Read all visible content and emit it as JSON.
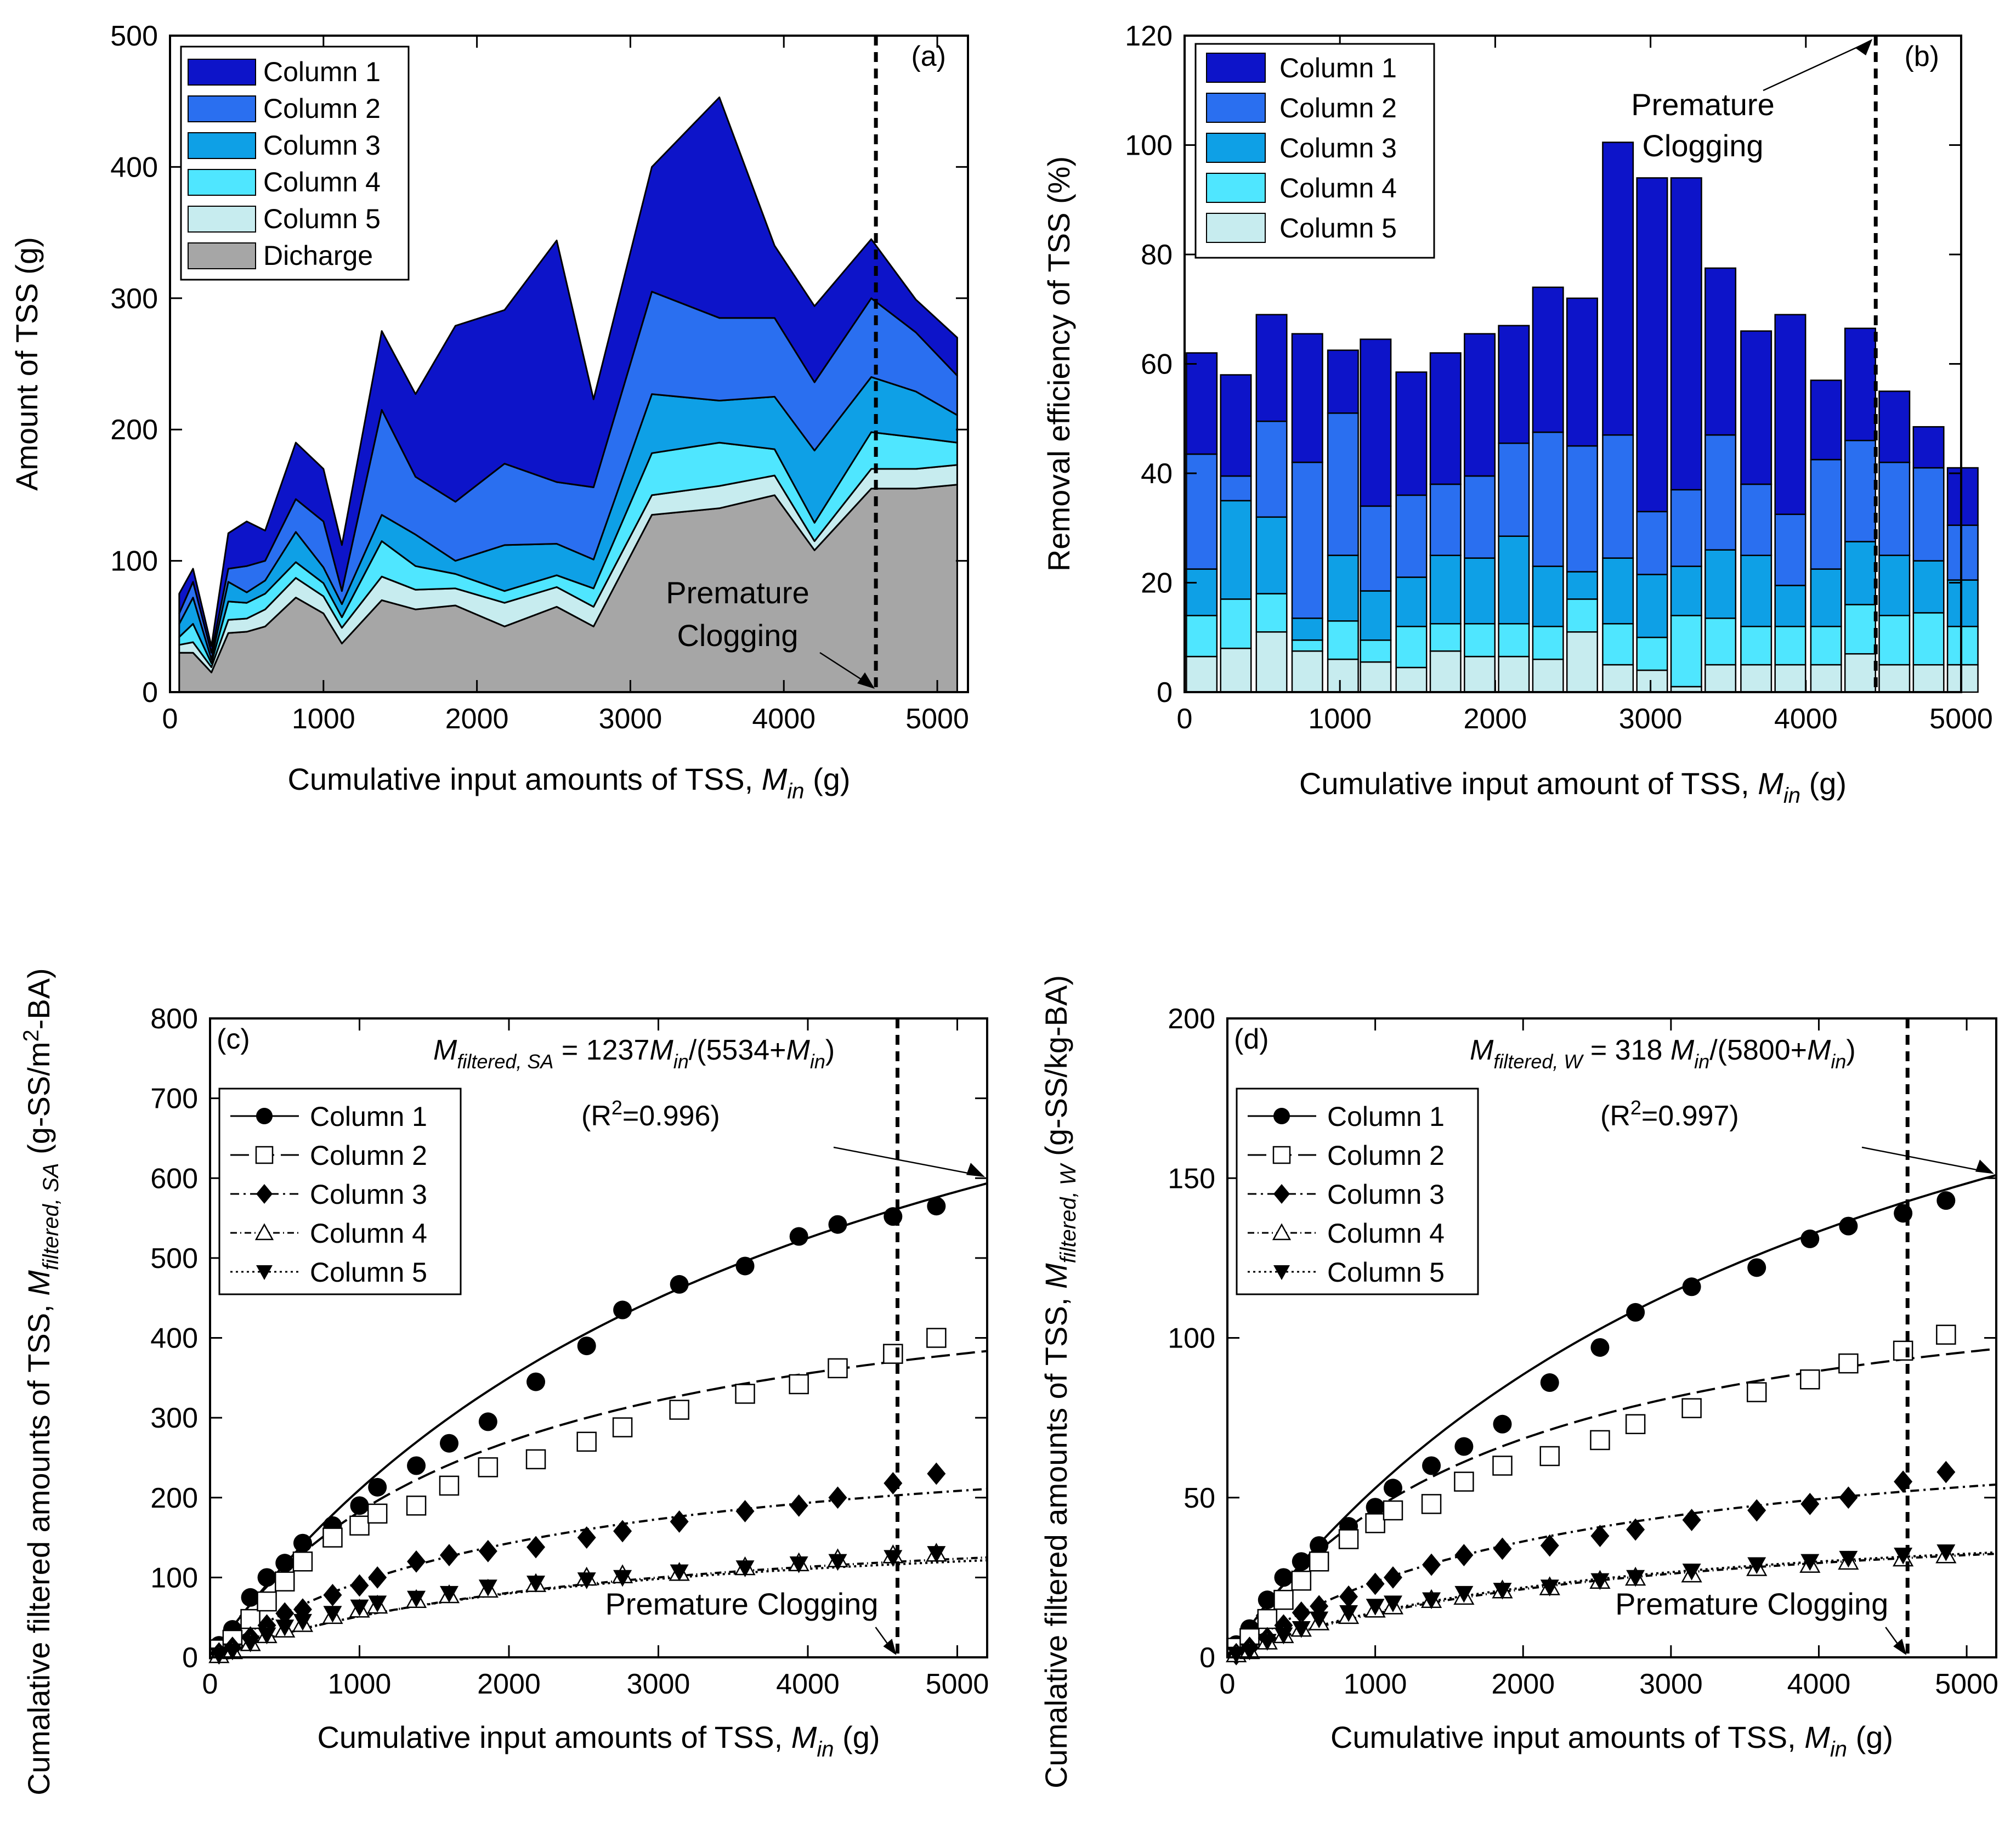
{
  "chart_data": [
    {
      "id": "a",
      "type": "area",
      "panel_label": "(a)",
      "xlabel": "Cumulative input amounts of TSS,",
      "x_symbol": "M",
      "x_symbol_sub": "in",
      "x_unit": "(g)",
      "ylabel": "Amount of TSS (g)",
      "xlim": [
        0,
        5200
      ],
      "ylim": [
        0,
        500
      ],
      "xticks": [
        0,
        1000,
        2000,
        3000,
        4000,
        5000
      ],
      "yticks": [
        0,
        100,
        200,
        300,
        400,
        500
      ],
      "x": [
        60,
        150,
        270,
        380,
        500,
        620,
        820,
        1000,
        1120,
        1380,
        1600,
        1860,
        2180,
        2520,
        2760,
        3140,
        3580,
        3940,
        4200,
        4570,
        4860,
        5130
      ],
      "layers": [
        {
          "name": "Dicharge",
          "color": "#a6a6a6",
          "values": [
            30,
            30,
            15,
            45,
            46,
            50,
            72,
            60,
            37,
            70,
            63,
            66,
            50,
            65,
            50,
            135,
            140,
            150,
            108,
            155,
            155,
            158
          ]
        },
        {
          "name": "Column 5",
          "color": "#c7ecef",
          "values": [
            6,
            8,
            4,
            10,
            10,
            13,
            15,
            13,
            12,
            18,
            15,
            13,
            18,
            15,
            15,
            15,
            17,
            15,
            7,
            15,
            15,
            15
          ]
        },
        {
          "name": "Column 4",
          "color": "#4fe6ff",
          "values": [
            6,
            14,
            3,
            14,
            12,
            12,
            12,
            10,
            8,
            27,
            18,
            11,
            9,
            9,
            14,
            32,
            33,
            20,
            14,
            28,
            24,
            17
          ]
        },
        {
          "name": "Column 3",
          "color": "#0ea0e6",
          "values": [
            10,
            20,
            3,
            15,
            8,
            10,
            23,
            12,
            10,
            20,
            24,
            10,
            35,
            24,
            22,
            45,
            32,
            40,
            55,
            42,
            35,
            21
          ]
        },
        {
          "name": "Column 2",
          "color": "#2a6ff0",
          "values": [
            8,
            12,
            5,
            10,
            20,
            15,
            25,
            35,
            10,
            80,
            44,
            45,
            62,
            47,
            55,
            78,
            63,
            60,
            52,
            60,
            45,
            30
          ]
        },
        {
          "name": "Column 1",
          "color": "#0d14c9",
          "values": [
            15,
            10,
            5,
            27,
            34,
            23,
            43,
            40,
            35,
            60,
            63,
            134,
            117,
            184,
            67,
            95,
            168,
            55,
            58,
            45,
            25,
            29
          ]
        }
      ],
      "legend": [
        "Column 1",
        "Column 2",
        "Column 3",
        "Column 4",
        "Column 5",
        "Dicharge"
      ],
      "legend_position": "top-left",
      "annotation": {
        "text_lines": [
          "Premature",
          "Clogging"
        ],
        "x": 4600
      },
      "vline_x": 4600
    },
    {
      "id": "b",
      "type": "bar",
      "stacked": true,
      "panel_label": "(b)",
      "xlabel": "Cumulative input amount of TSS,",
      "x_symbol": "M",
      "x_symbol_sub": "in",
      "x_unit": "(g)",
      "ylabel": "Removal efficiency of TSS (%)",
      "xlim": [
        0,
        5000
      ],
      "ylim": [
        0,
        120
      ],
      "xticks": [
        0,
        1000,
        2000,
        3000,
        4000,
        5000
      ],
      "yticks": [
        0,
        20,
        40,
        60,
        80,
        100,
        120
      ],
      "x": [
        110,
        330,
        560,
        790,
        1020,
        1230,
        1460,
        1680,
        1900,
        2120,
        2340,
        2560,
        2790,
        3010,
        3230,
        3450,
        3680,
        3900,
        4130,
        4350,
        4570,
        4790,
        5010
      ],
      "series": [
        {
          "name": "Column 5",
          "color": "#c7ecef",
          "values": [
            6.5,
            8,
            11,
            7.5,
            6,
            5.5,
            4.5,
            7.5,
            6.5,
            6.5,
            6,
            11,
            5,
            4,
            1,
            5,
            5,
            5,
            5,
            7,
            5,
            5,
            5
          ]
        },
        {
          "name": "Column 4",
          "color": "#4fe6ff",
          "values": [
            7.5,
            9,
            7,
            2,
            7,
            4,
            7.5,
            5,
            6,
            6,
            6,
            6,
            7.5,
            6,
            13,
            8.5,
            7,
            7,
            7,
            9,
            9,
            9.5,
            7
          ]
        },
        {
          "name": "Column 3",
          "color": "#0ea0e6",
          "values": [
            8.5,
            18,
            14,
            4,
            12,
            9,
            9,
            12.5,
            12,
            16,
            11,
            5,
            12,
            11.5,
            9,
            12.5,
            13,
            7.5,
            10.5,
            11.5,
            11,
            9.5,
            8.5
          ]
        },
        {
          "name": "Column 2",
          "color": "#2a6ff0",
          "values": [
            21,
            4.5,
            17.5,
            28.5,
            26,
            15.5,
            15,
            13,
            15,
            17,
            24.5,
            23,
            22.5,
            11.5,
            14,
            21,
            13,
            13,
            20,
            18.5,
            17,
            17,
            10
          ]
        },
        {
          "name": "Column 1",
          "color": "#0d14c9",
          "values": [
            18.5,
            18.5,
            19.5,
            23.5,
            11.5,
            30.5,
            22.5,
            24,
            26,
            21.5,
            26.5,
            27,
            53.5,
            61,
            57,
            30.5,
            28,
            36.5,
            14.5,
            20.5,
            13,
            7.5,
            10.5
          ]
        }
      ],
      "legend": [
        "Column 1",
        "Column 2",
        "Column 3",
        "Column 4",
        "Column 5"
      ],
      "legend_position": "top-left",
      "annotation": {
        "text_lines": [
          "Premature",
          "Clogging"
        ],
        "x": 4450
      },
      "vline_x": 4450
    },
    {
      "id": "c",
      "type": "scatter",
      "panel_label": "(c)",
      "xlabel": "Cumulative input amounts of TSS,",
      "x_symbol": "M",
      "x_symbol_sub": "in",
      "x_unit": "(g)",
      "ylabel_prefix": "Cumalative filtered amounts of TSS,",
      "y_symbol": "M",
      "y_symbol_sub": "filtered, SA",
      "y_unit_a": "(g-SS/m",
      "y_unit_sup": "2",
      "y_unit_b": "-BA)",
      "xlim": [
        0,
        5200
      ],
      "ylim": [
        0,
        800
      ],
      "xticks": [
        0,
        1000,
        2000,
        3000,
        4000,
        5000
      ],
      "yticks": [
        0,
        100,
        200,
        300,
        400,
        500,
        600,
        700,
        800
      ],
      "x": [
        60,
        150,
        270,
        380,
        500,
        620,
        820,
        1000,
        1120,
        1380,
        1600,
        1860,
        2180,
        2520,
        2760,
        3140,
        3580,
        3940,
        4200,
        4570,
        4860
      ],
      "series": [
        {
          "name": "Column 1",
          "marker": "circle",
          "values": [
            15,
            35,
            75,
            100,
            118,
            143,
            165,
            190,
            213,
            240,
            268,
            295,
            345,
            390,
            435,
            467,
            490,
            527,
            542,
            552,
            565
          ],
          "fit": {
            "a": 1050,
            "b": 4000,
            "dash": "none"
          }
        },
        {
          "name": "Column 2",
          "marker": "square",
          "values": [
            10,
            22,
            48,
            70,
            95,
            120,
            150,
            165,
            180,
            190,
            215,
            238,
            248,
            270,
            288,
            310,
            330,
            342,
            362,
            380,
            400
          ],
          "fit": {
            "a": 520,
            "b": 1850,
            "dash": "34 12"
          }
        },
        {
          "name": "Column 3",
          "marker": "diamond",
          "values": [
            5,
            12,
            25,
            40,
            55,
            60,
            78,
            90,
            100,
            120,
            128,
            133,
            138,
            150,
            158,
            170,
            183,
            190,
            200,
            218,
            230
          ],
          "fit": {
            "a": 300,
            "b": 2200,
            "dash": "16 8 4 8"
          }
        },
        {
          "name": "Column 4",
          "marker": "triangle-up",
          "values": [
            3,
            8,
            18,
            28,
            35,
            42,
            52,
            60,
            65,
            72,
            78,
            85,
            92,
            100,
            103,
            106,
            113,
            118,
            123,
            128,
            130
          ],
          "fit": {
            "a": 190,
            "b": 2700,
            "dash": "12 6 2 6"
          }
        },
        {
          "name": "Column 5",
          "marker": "triangle-down",
          "values": [
            3,
            8,
            18,
            28,
            38,
            45,
            55,
            63,
            68,
            74,
            80,
            88,
            93,
            97,
            100,
            107,
            112,
            117,
            120,
            125,
            130
          ],
          "fit": {
            "a": 180,
            "b": 2500,
            "dash": "4 6"
          }
        }
      ],
      "legend": [
        "Column 1",
        "Column 2",
        "Column 3",
        "Column 4",
        "Column 5"
      ],
      "legend_position": "top-left",
      "equation": {
        "lhs": "M",
        "lhs_sub": "filtered, SA",
        "rhs_a": " = 1237",
        "rhs_M": "M",
        "rhs_in": "in",
        "rhs_b": "/(5534+",
        "rhs_M2": "M",
        "rhs_in2": "in",
        "rhs_c": ")"
      },
      "r2": {
        "a": "(R",
        "sup": "2",
        "b": "=0.996)"
      },
      "annotation": {
        "text": "Premature Clogging",
        "x": 4600
      },
      "vline_x": 4600
    },
    {
      "id": "d",
      "type": "scatter",
      "panel_label": "(d)",
      "xlabel": "Cumulative input amounts of TSS,",
      "x_symbol": "M",
      "x_symbol_sub": "in",
      "x_unit": "(g)",
      "ylabel_prefix": "Cumalative filtered amounts of TSS,",
      "y_symbol": "M",
      "y_symbol_sub": "filtered, W",
      "y_unit": "(g-SS/kg-BA)",
      "xlim": [
        0,
        5200
      ],
      "ylim": [
        0,
        200
      ],
      "xticks": [
        0,
        1000,
        2000,
        3000,
        4000,
        5000
      ],
      "yticks": [
        0,
        50,
        100,
        150,
        200
      ],
      "x": [
        60,
        150,
        270,
        380,
        500,
        620,
        820,
        1000,
        1120,
        1380,
        1600,
        1860,
        2180,
        2520,
        2760,
        3140,
        3580,
        3940,
        4200,
        4570,
        4860
      ],
      "series": [
        {
          "name": "Column 1",
          "marker": "circle",
          "values": [
            4,
            9,
            18,
            25,
            30,
            35,
            41,
            47,
            53,
            60,
            66,
            73,
            86,
            97,
            108,
            116,
            122,
            131,
            135,
            139,
            143
          ],
          "fit": {
            "a": 270,
            "b": 4100,
            "dash": "none"
          }
        },
        {
          "name": "Column 2",
          "marker": "square",
          "values": [
            3,
            6,
            12,
            18,
            24,
            30,
            37,
            42,
            46,
            48,
            55,
            60,
            63,
            68,
            73,
            78,
            83,
            87,
            92,
            96,
            101
          ],
          "fit": {
            "a": 130,
            "b": 1800,
            "dash": "34 12"
          }
        },
        {
          "name": "Column 3",
          "marker": "diamond",
          "values": [
            1,
            3,
            6,
            10,
            14,
            16,
            19,
            23,
            25,
            29,
            32,
            34,
            35,
            38,
            40,
            43,
            46,
            48,
            50,
            55,
            58
          ],
          "fit": {
            "a": 78,
            "b": 2300,
            "dash": "16 8 4 8"
          }
        },
        {
          "name": "Column 4",
          "marker": "triangle-up",
          "values": [
            1,
            2,
            5,
            7,
            9,
            11,
            13,
            15,
            16,
            18,
            19,
            21,
            22,
            24,
            25,
            26,
            28,
            29,
            30,
            31,
            32
          ],
          "fit": {
            "a": 48,
            "b": 2500,
            "dash": "12 6 2 6"
          }
        },
        {
          "name": "Column 5",
          "marker": "triangle-down",
          "values": [
            1,
            2,
            5,
            7,
            9,
            12,
            14,
            16,
            17,
            18,
            20,
            21,
            22,
            24,
            25,
            27,
            29,
            30,
            31,
            32,
            33
          ],
          "fit": {
            "a": 48,
            "b": 2400,
            "dash": "4 6"
          }
        }
      ],
      "legend": [
        "Column 1",
        "Column 2",
        "Column 3",
        "Column 4",
        "Column 5"
      ],
      "legend_position": "top-left",
      "equation": {
        "lhs": "M",
        "lhs_sub": "filtered, W",
        "rhs_a": " = 318 ",
        "rhs_M": "M",
        "rhs_in": "in",
        "rhs_b": "/(5800+",
        "rhs_M2": "M",
        "rhs_in2": "in",
        "rhs_c": ")"
      },
      "r2": {
        "a": "(R",
        "sup": "2",
        "b": "=0.997)"
      },
      "annotation": {
        "text": "Premature Clogging",
        "x": 4600
      },
      "vline_x": 4600
    }
  ]
}
